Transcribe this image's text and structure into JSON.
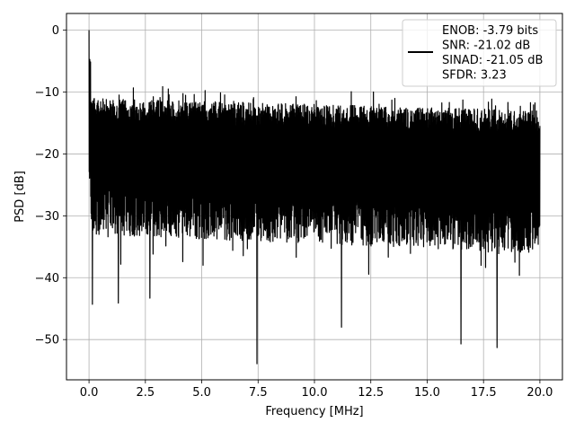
{
  "chart_data": {
    "type": "line",
    "title": "",
    "xlabel": "Frequency [MHz]",
    "ylabel": "PSD [dB]",
    "xlim": [
      -1.0,
      21.0
    ],
    "ylim": [
      -56.5,
      2.7
    ],
    "xticks": [
      0.0,
      2.5,
      5.0,
      7.5,
      10.0,
      12.5,
      15.0,
      17.5,
      20.0
    ],
    "xtick_labels": [
      "0.0",
      "2.5",
      "5.0",
      "7.5",
      "10.0",
      "12.5",
      "15.0",
      "17.5",
      "20.0"
    ],
    "yticks": [
      0,
      -10,
      -20,
      -30,
      -40,
      -50
    ],
    "ytick_labels": [
      "0",
      "−10",
      "−20",
      "−30",
      "−40",
      "−50"
    ],
    "grid": true,
    "legend_position": "top-right",
    "legend_lines": [
      "ENOB: -3.79 bits",
      "SNR: -21.02 dB",
      "SINAD: -21.05 dB",
      "SFDR: 3.23"
    ],
    "series_color": "#000000",
    "series": [
      {
        "x_range": [
          0.0,
          20.0
        ],
        "baseline_db": -22.0,
        "upper_envelope_db": [
          -11.0,
          -13.0
        ],
        "lower_envelope_db": [
          -33.0,
          -36.0
        ],
        "peak": {
          "x": 0.0,
          "y": 0.0
        },
        "notable_minima": [
          {
            "x": 0.15,
            "y": -44.3
          },
          {
            "x": 1.3,
            "y": -44.1
          },
          {
            "x": 2.7,
            "y": -43.3
          },
          {
            "x": 7.45,
            "y": -53.9
          },
          {
            "x": 11.2,
            "y": -48.0
          },
          {
            "x": 16.5,
            "y": -50.7
          },
          {
            "x": 18.1,
            "y": -51.3
          }
        ]
      }
    ]
  }
}
